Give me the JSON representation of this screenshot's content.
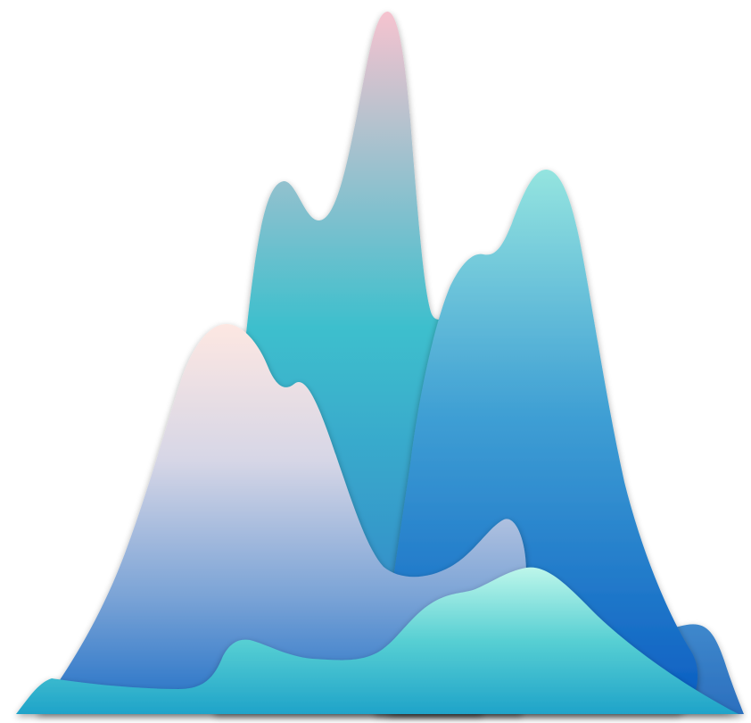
{
  "illustration": {
    "subject": "layered-mountain-peaks",
    "colors": {
      "pink_peak": "#f5c4cf",
      "teal_mid": "#3dbfcd",
      "blue_deep": "#0a5fc4",
      "aqua_peak": "#8ee2df",
      "blush_peak": "#fde6e3",
      "mint_front": "#b8f4e8",
      "teal_front": "#2fb4cc",
      "background": "#ffffff"
    }
  }
}
